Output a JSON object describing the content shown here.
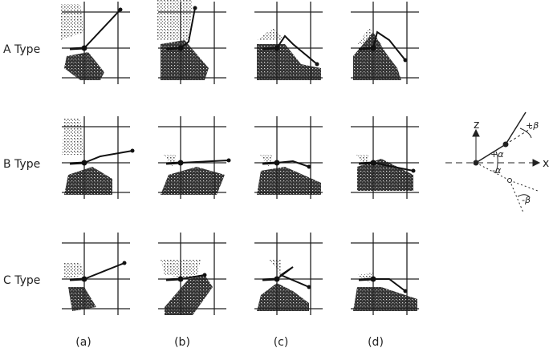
{
  "rows": [
    "A Type",
    "B Type",
    "C Type"
  ],
  "columns": [
    "(a)",
    "(b)",
    "(c)",
    "(d)"
  ],
  "inset": {
    "z_label": "z",
    "x_label": "x",
    "plus_alpha": "+α",
    "minus_alpha": "-α",
    "plus_beta": "+β",
    "minus_beta": "-β"
  }
}
